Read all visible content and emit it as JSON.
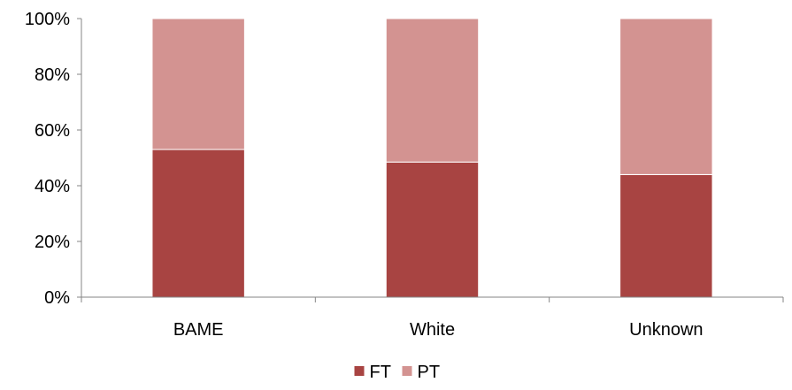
{
  "chart_data": {
    "type": "bar",
    "stacked": true,
    "percent": true,
    "title": "",
    "xlabel": "",
    "ylabel": "",
    "categories": [
      "BAME",
      "White",
      "Unknown"
    ],
    "series": [
      {
        "name": "FT",
        "values": [
          53,
          48.5,
          44
        ],
        "color": "#a84442"
      },
      {
        "name": "PT",
        "values": [
          47,
          51.5,
          56
        ],
        "color": "#d39391"
      }
    ],
    "ylim": [
      0,
      100
    ],
    "yticks": [
      {
        "value": 0,
        "label": "0%"
      },
      {
        "value": 20,
        "label": "20%"
      },
      {
        "value": 40,
        "label": "40%"
      },
      {
        "value": 60,
        "label": "60%"
      },
      {
        "value": 80,
        "label": "80%"
      },
      {
        "value": 100,
        "label": "100%"
      }
    ],
    "grid": false,
    "legend_position": "bottom"
  }
}
